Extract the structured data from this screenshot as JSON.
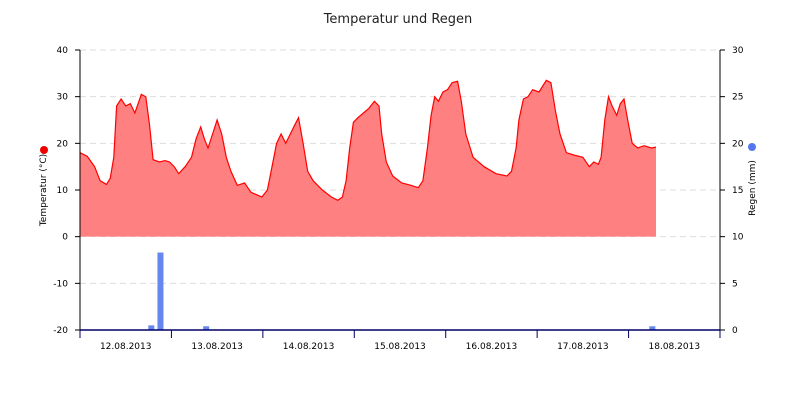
{
  "chart_data": {
    "type": "area",
    "title": "Temperatur und Regen",
    "x_ticks": [
      "12.08.2013",
      "13.08.2013",
      "14.08.2013",
      "15.08.2013",
      "16.08.2013",
      "17.08.2013",
      "18.08.2013"
    ],
    "x_range_days": [
      0,
      7
    ],
    "y_left": {
      "label": "Temperatur (°C)",
      "range": [
        -20,
        40
      ],
      "ticks": [
        -20,
        -10,
        0,
        10,
        20,
        30,
        40
      ]
    },
    "y_right": {
      "label": "Regen (mm)",
      "range": [
        0,
        30
      ],
      "ticks": [
        0,
        5,
        10,
        15,
        20,
        25,
        30
      ]
    },
    "grid": true,
    "series": [
      {
        "name": "Temperatur (°C)",
        "type": "area",
        "axis": "left",
        "color": "#ff0000",
        "fill": "#ff8080",
        "points": [
          [
            0.0,
            18
          ],
          [
            0.08,
            17.2
          ],
          [
            0.16,
            15
          ],
          [
            0.22,
            12
          ],
          [
            0.29,
            11.2
          ],
          [
            0.33,
            12.5
          ],
          [
            0.37,
            17
          ],
          [
            0.4,
            28
          ],
          [
            0.45,
            29.5
          ],
          [
            0.5,
            28
          ],
          [
            0.55,
            28.5
          ],
          [
            0.6,
            26.5
          ],
          [
            0.67,
            30.5
          ],
          [
            0.72,
            30
          ],
          [
            0.76,
            24
          ],
          [
            0.8,
            16.5
          ],
          [
            0.87,
            16
          ],
          [
            0.93,
            16.3
          ],
          [
            0.98,
            16
          ],
          [
            1.03,
            15
          ],
          [
            1.08,
            13.5
          ],
          [
            1.15,
            15
          ],
          [
            1.22,
            17
          ],
          [
            1.27,
            21
          ],
          [
            1.32,
            23.5
          ],
          [
            1.36,
            21
          ],
          [
            1.4,
            19
          ],
          [
            1.45,
            22
          ],
          [
            1.5,
            25
          ],
          [
            1.55,
            22
          ],
          [
            1.6,
            17
          ],
          [
            1.65,
            14
          ],
          [
            1.72,
            11
          ],
          [
            1.8,
            11.5
          ],
          [
            1.87,
            9.5
          ],
          [
            1.93,
            9
          ],
          [
            1.99,
            8.5
          ],
          [
            2.05,
            10
          ],
          [
            2.1,
            15
          ],
          [
            2.15,
            20
          ],
          [
            2.2,
            22
          ],
          [
            2.25,
            20
          ],
          [
            2.3,
            22
          ],
          [
            2.35,
            24
          ],
          [
            2.39,
            25.5
          ],
          [
            2.44,
            20
          ],
          [
            2.49,
            14
          ],
          [
            2.55,
            12
          ],
          [
            2.65,
            10
          ],
          [
            2.75,
            8.5
          ],
          [
            2.82,
            7.8
          ],
          [
            2.87,
            8.5
          ],
          [
            2.91,
            12
          ],
          [
            2.95,
            19
          ],
          [
            2.99,
            24.5
          ],
          [
            3.04,
            25.5
          ],
          [
            3.1,
            26.5
          ],
          [
            3.16,
            27.5
          ],
          [
            3.22,
            29
          ],
          [
            3.27,
            28
          ],
          [
            3.3,
            22
          ],
          [
            3.35,
            16
          ],
          [
            3.42,
            13
          ],
          [
            3.52,
            11.5
          ],
          [
            3.62,
            11
          ],
          [
            3.7,
            10.5
          ],
          [
            3.75,
            12
          ],
          [
            3.8,
            19
          ],
          [
            3.84,
            26
          ],
          [
            3.88,
            30
          ],
          [
            3.92,
            29
          ],
          [
            3.97,
            31
          ],
          [
            4.02,
            31.5
          ],
          [
            4.07,
            33
          ],
          [
            4.13,
            33.3
          ],
          [
            4.17,
            29
          ],
          [
            4.22,
            22
          ],
          [
            4.3,
            17
          ],
          [
            4.42,
            15
          ],
          [
            4.55,
            13.5
          ],
          [
            4.67,
            13
          ],
          [
            4.72,
            14
          ],
          [
            4.77,
            19
          ],
          [
            4.8,
            25
          ],
          [
            4.85,
            29.5
          ],
          [
            4.9,
            30
          ],
          [
            4.95,
            31.5
          ],
          [
            5.02,
            31
          ],
          [
            5.1,
            33.5
          ],
          [
            5.15,
            33
          ],
          [
            5.2,
            27
          ],
          [
            5.25,
            22
          ],
          [
            5.32,
            18
          ],
          [
            5.4,
            17.5
          ],
          [
            5.5,
            17
          ],
          [
            5.57,
            15
          ],
          [
            5.62,
            16
          ],
          [
            5.67,
            15.5
          ],
          [
            5.7,
            17
          ],
          [
            5.74,
            25
          ],
          [
            5.78,
            30
          ],
          [
            5.82,
            28
          ],
          [
            5.87,
            26
          ],
          [
            5.91,
            28.5
          ],
          [
            5.95,
            29.5
          ],
          [
            5.99,
            25
          ],
          [
            6.04,
            20
          ],
          [
            6.1,
            19
          ],
          [
            6.17,
            19.5
          ],
          [
            6.25,
            19
          ],
          [
            6.3,
            19.2
          ]
        ]
      },
      {
        "name": "Regen (mm)",
        "type": "bar",
        "axis": "right",
        "color": "#6688ee",
        "points": [
          [
            0.78,
            0.5
          ],
          [
            0.88,
            8.3
          ],
          [
            1.38,
            0.4
          ],
          [
            6.26,
            0.4
          ]
        ]
      }
    ]
  }
}
